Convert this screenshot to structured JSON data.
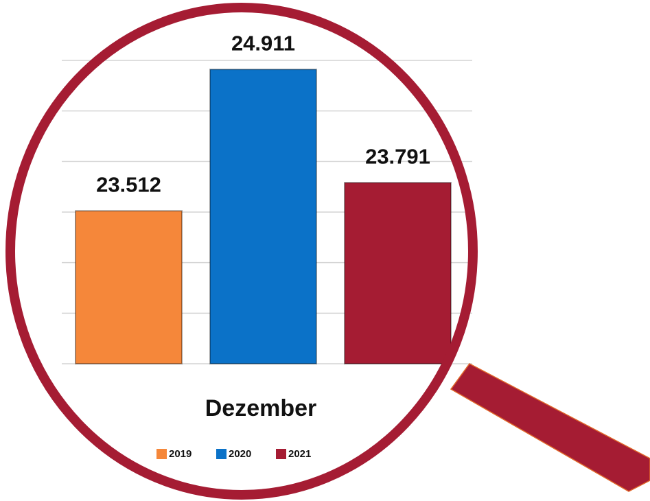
{
  "chart_data": {
    "type": "bar",
    "categories": [
      "Dezember"
    ],
    "series": [
      {
        "name": "2019",
        "color": "#f5873a",
        "values": [
          23512
        ],
        "value_labels": [
          "23.512"
        ]
      },
      {
        "name": "2020",
        "color": "#0b72c8",
        "values": [
          24911
        ],
        "value_labels": [
          "24.911"
        ]
      },
      {
        "name": "2021",
        "color": "#a51c33",
        "values": [
          23791
        ],
        "value_labels": [
          "23.791"
        ]
      }
    ],
    "ylim": [
      22000,
      25000
    ],
    "yticks": [
      22000,
      22500,
      23000,
      23500,
      24000,
      24500,
      25000
    ],
    "grid": true
  }
}
